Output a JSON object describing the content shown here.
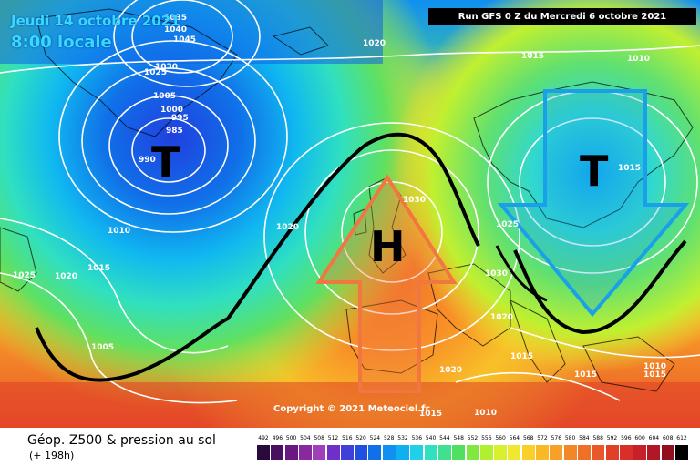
{
  "header": {
    "date_line": "Jeudi 14 octobre 2021",
    "time_line": "8:00 locale",
    "run_info": "Run GFS 0 Z du Mercredi 6 octobre 2021"
  },
  "footer": {
    "title": "Géop. Z500 & pression au sol",
    "subtitle": "(+ 198h)",
    "copyright": "Copyright © 2021 Meteociel.fr"
  },
  "colors": {
    "low_arrow": "#1aa0e8",
    "high_arrow": "#f07840",
    "jet_line": "#000000",
    "isobar": "#ffffff"
  },
  "systems": [
    {
      "label": "T",
      "kind": "low",
      "place": "south of Greenland"
    },
    {
      "label": "H",
      "kind": "high",
      "place": "British Isles"
    },
    {
      "label": "T",
      "kind": "low",
      "place": "Scandinavia"
    }
  ],
  "pressure_labels": [
    "1035",
    "1040",
    "1045",
    "1030",
    "1025",
    "1020",
    "1005",
    "1000",
    "995",
    "985",
    "990",
    "1010",
    "1015",
    "1020",
    "1025",
    "1005",
    "1020",
    "1015",
    "1010",
    "1030",
    "1015",
    "1025",
    "1030",
    "1020",
    "1015",
    "1020",
    "1015",
    "1010",
    "1015",
    "1015",
    "1010"
  ],
  "legend": {
    "values": [
      492,
      496,
      500,
      504,
      508,
      512,
      516,
      520,
      524,
      528,
      532,
      536,
      540,
      544,
      548,
      552,
      556,
      560,
      564,
      568,
      572,
      576,
      580,
      584,
      588,
      592,
      596,
      600,
      604,
      608,
      612
    ],
    "colors": [
      "#2a0a3a",
      "#4a1060",
      "#6a1880",
      "#8a28a0",
      "#a040b8",
      "#7030c8",
      "#4040d8",
      "#2050e0",
      "#1070e8",
      "#1090f0",
      "#10b0f0",
      "#20d0e8",
      "#30e0c0",
      "#40e090",
      "#50e060",
      "#80e840",
      "#b0f030",
      "#d8f030",
      "#f0e830",
      "#f8d028",
      "#f8b828",
      "#f8a028",
      "#f08828",
      "#f07028",
      "#e85828",
      "#e04028",
      "#d83028",
      "#c82028",
      "#b01828",
      "#901020",
      "#000000"
    ]
  }
}
